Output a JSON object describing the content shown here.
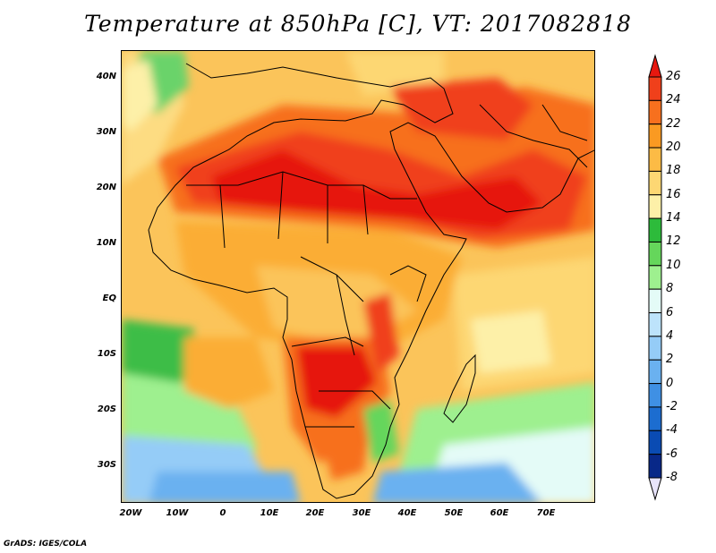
{
  "title": "Temperature at 850hPa [C], VT: 2017082818",
  "credit": "GrADS: IGES/COLA",
  "map": {
    "variable": "Temperature at 850hPa",
    "units": "C",
    "valid_time": "2017082818",
    "lat_labels": [
      "40N",
      "30N",
      "20N",
      "10N",
      "EQ",
      "10S",
      "20S",
      "30S"
    ],
    "lon_labels": [
      "20W",
      "10W",
      "0",
      "10E",
      "20E",
      "30E",
      "40E",
      "50E",
      "60E",
      "70E"
    ],
    "lat_range": [
      -37,
      45
    ],
    "lon_range": [
      -23,
      80
    ]
  },
  "colorbar": {
    "levels": [
      "26",
      "24",
      "22",
      "20",
      "18",
      "16",
      "14",
      "12",
      "10",
      "8",
      "6",
      "4",
      "2",
      "0",
      "-2",
      "-4",
      "-6",
      "-8"
    ],
    "colors": [
      "#e6180f",
      "#f0401b",
      "#f7701e",
      "#fa9a22",
      "#fcbb45",
      "#fdd773",
      "#fdf0a8",
      "#2dbb3b",
      "#65d65b",
      "#9ef08f",
      "#e4fbf7",
      "#bde3fb",
      "#95ccf7",
      "#6ab1f0",
      "#3f90e4",
      "#1c6dd0",
      "#0a4bb3",
      "#082888",
      "#0b0b5e"
    ]
  },
  "icons": {
    "colorbar_top": "triangle-up-icon",
    "colorbar_bottom": "triangle-down-icon"
  }
}
